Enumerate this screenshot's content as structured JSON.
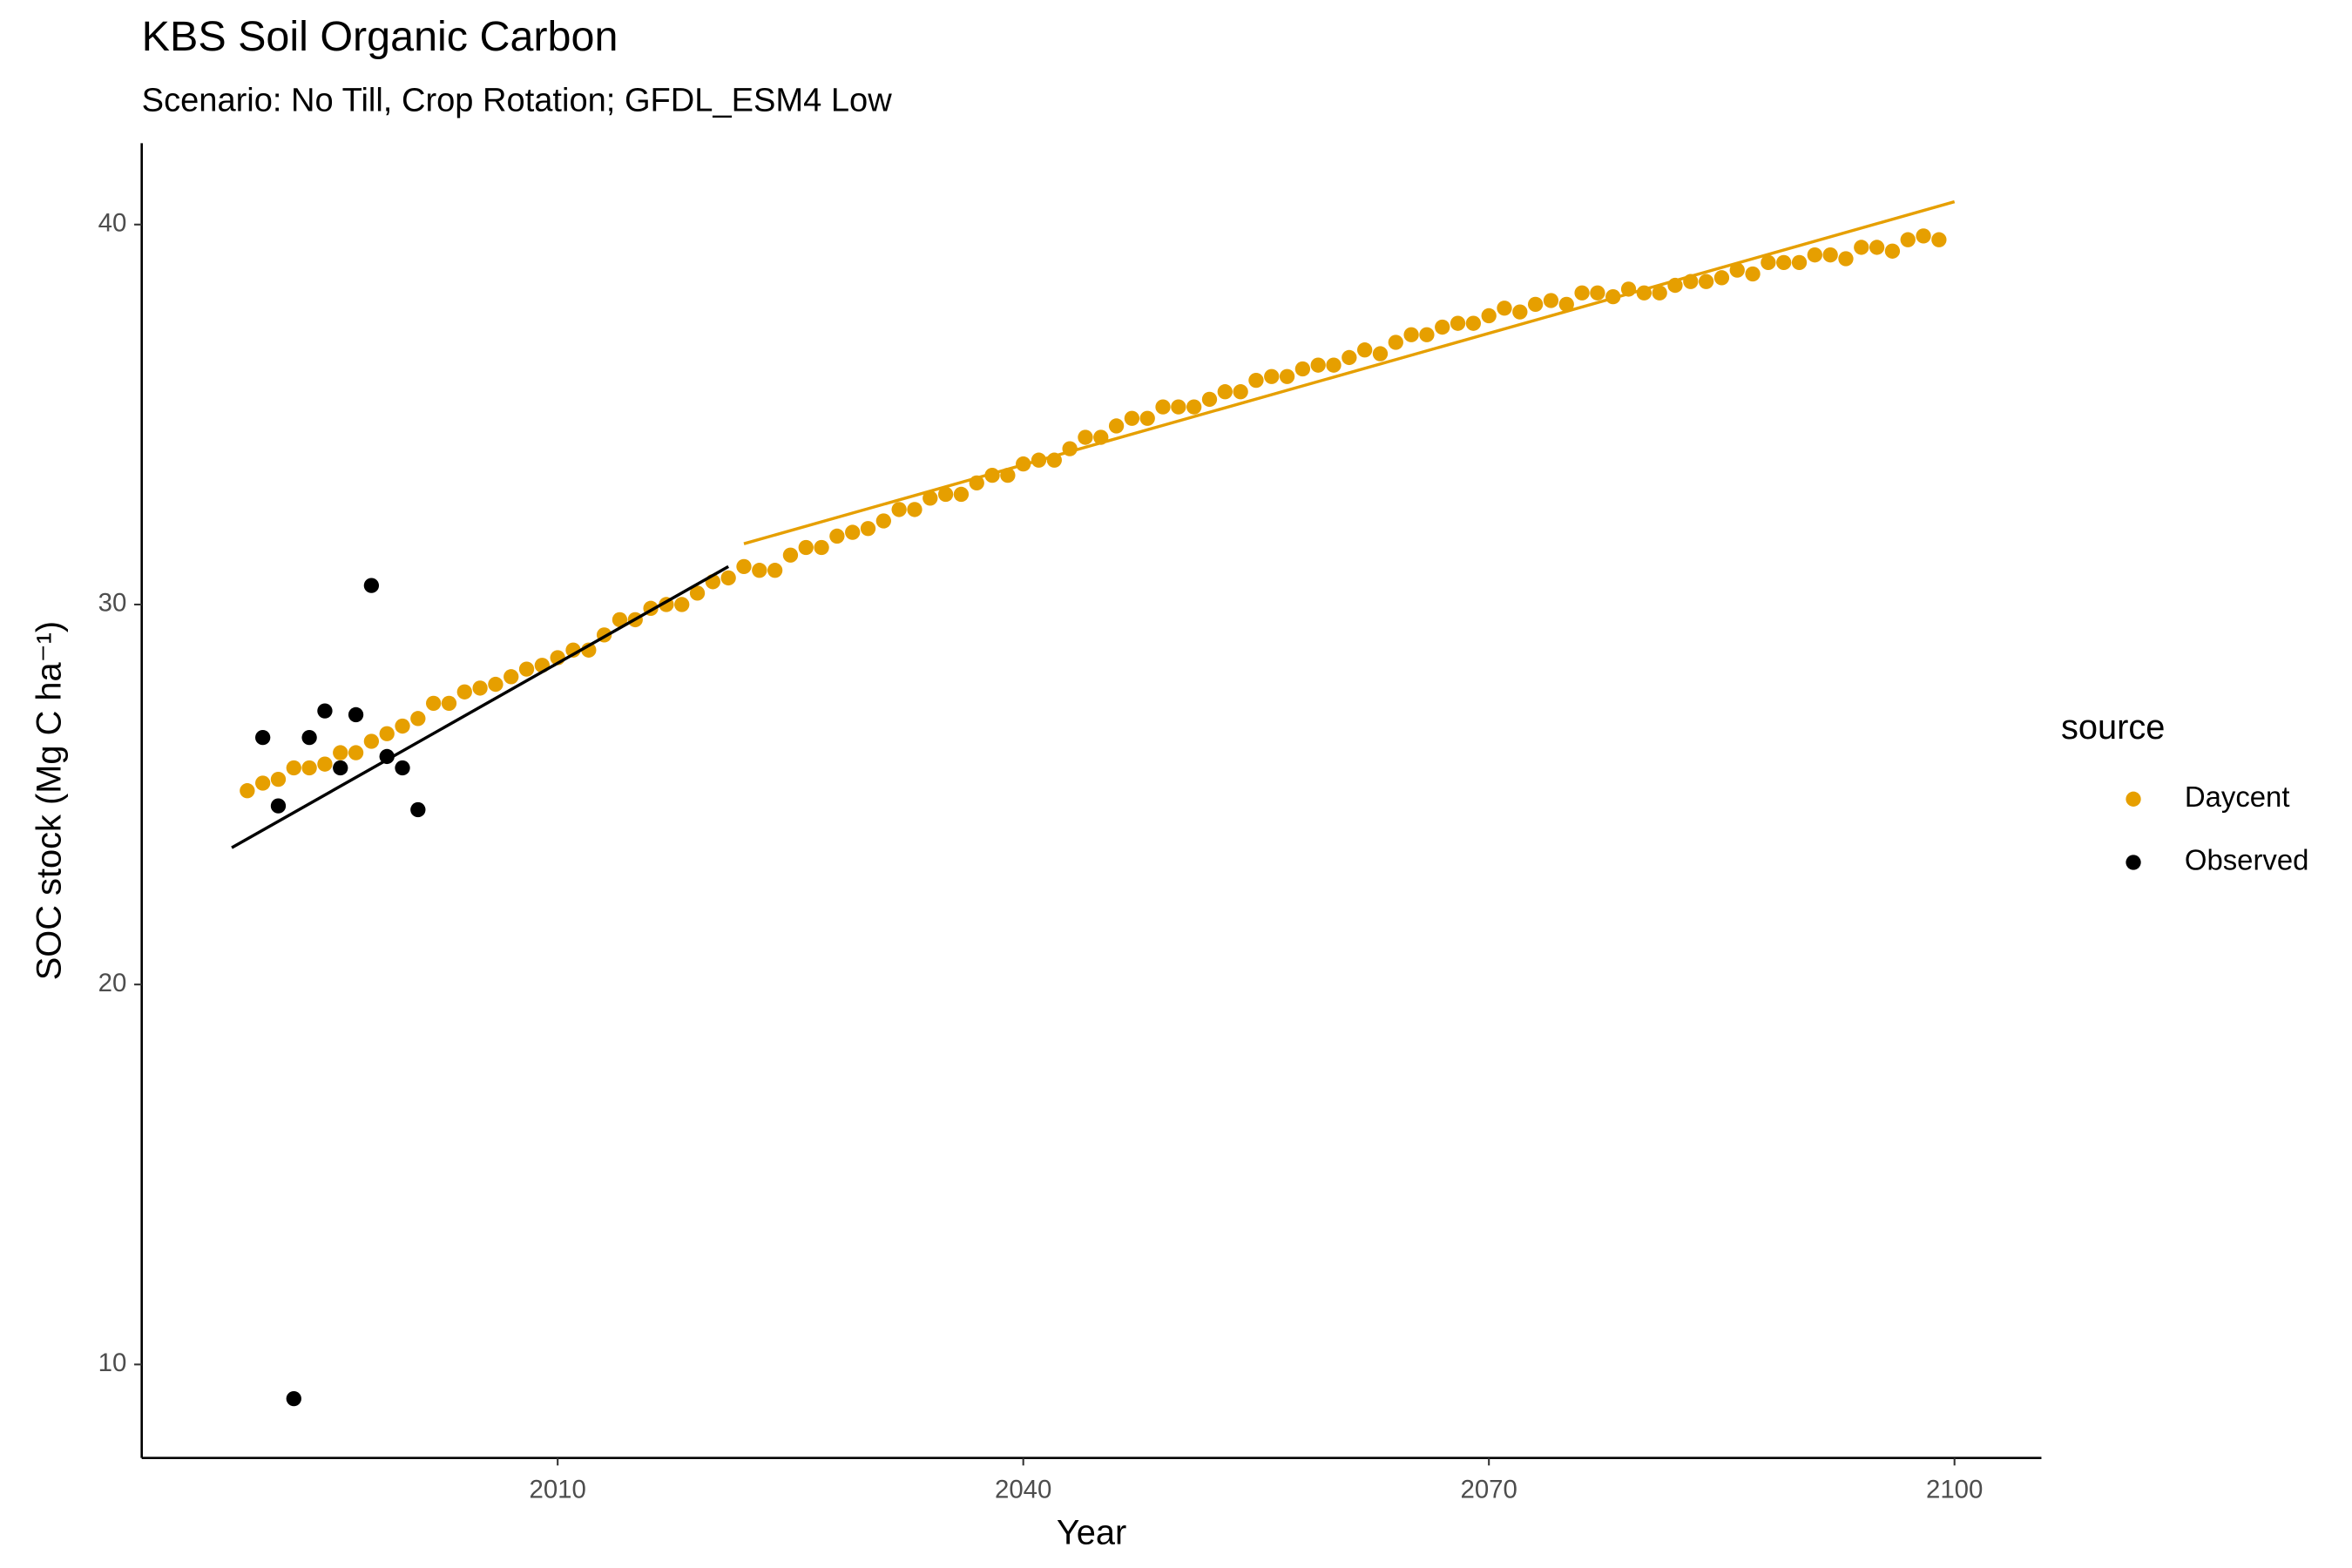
{
  "chart_data": {
    "type": "scatter",
    "title": "KBS Soil Organic Carbon",
    "subtitle": "Scenario: No Till, Crop Rotation; GFDL_ESM4 Low",
    "x_label": "Year",
    "y_label": "SOC stock (Mg C ha⁻¹)",
    "legend_title": "source",
    "legend_position": "right",
    "grid": false,
    "xlim": [
      1983.2,
      2105.6
    ],
    "ylim": [
      7.54,
      42.14
    ],
    "xticks": [
      2010,
      2040,
      2070,
      2100
    ],
    "yticks": [
      10,
      20,
      30,
      40
    ],
    "series": [
      {
        "name": "Daycent",
        "color": "#e69f00",
        "x": [
          1990,
          1991,
          1992,
          1993,
          1994,
          1995,
          1996,
          1997,
          1998,
          1999,
          2000,
          2001,
          2002,
          2003,
          2004,
          2005,
          2006,
          2007,
          2008,
          2009,
          2010,
          2011,
          2012,
          2013,
          2014,
          2015,
          2016,
          2017,
          2018,
          2019,
          2020,
          2021,
          2022,
          2023,
          2024,
          2025,
          2026,
          2027,
          2028,
          2029,
          2030,
          2031,
          2032,
          2033,
          2034,
          2035,
          2036,
          2037,
          2038,
          2039,
          2040,
          2041,
          2042,
          2043,
          2044,
          2045,
          2046,
          2047,
          2048,
          2049,
          2050,
          2051,
          2052,
          2053,
          2054,
          2055,
          2056,
          2057,
          2058,
          2059,
          2060,
          2061,
          2062,
          2063,
          2064,
          2065,
          2066,
          2067,
          2068,
          2069,
          2070,
          2071,
          2072,
          2073,
          2074,
          2075,
          2076,
          2077,
          2078,
          2079,
          2080,
          2081,
          2082,
          2083,
          2084,
          2085,
          2086,
          2087,
          2088,
          2089,
          2090,
          2091,
          2092,
          2093,
          2094,
          2095,
          2096,
          2097,
          2098,
          2099
        ],
        "values": [
          25.1,
          25.3,
          25.4,
          25.7,
          25.7,
          25.8,
          26.1,
          26.1,
          26.4,
          26.6,
          26.8,
          27.0,
          27.4,
          27.4,
          27.7,
          27.8,
          27.9,
          28.1,
          28.3,
          28.4,
          28.6,
          28.8,
          28.8,
          29.2,
          29.6,
          29.6,
          29.9,
          30.0,
          30.0,
          30.3,
          30.6,
          30.7,
          31.0,
          30.9,
          30.9,
          31.3,
          31.5,
          31.5,
          31.8,
          31.9,
          32.0,
          32.2,
          32.5,
          32.5,
          32.8,
          32.9,
          32.9,
          33.2,
          33.4,
          33.4,
          33.7,
          33.8,
          33.8,
          34.1,
          34.4,
          34.4,
          34.7,
          34.9,
          34.9,
          35.2,
          35.2,
          35.2,
          35.4,
          35.6,
          35.6,
          35.9,
          36.0,
          36.0,
          36.2,
          36.3,
          36.3,
          36.5,
          36.7,
          36.6,
          36.9,
          37.1,
          37.1,
          37.3,
          37.4,
          37.4,
          37.6,
          37.8,
          37.7,
          37.9,
          38.0,
          37.9,
          38.2,
          38.2,
          38.1,
          38.3,
          38.2,
          38.2,
          38.4,
          38.5,
          38.5,
          38.6,
          38.8,
          38.7,
          39.0,
          39.0,
          39.0,
          39.2,
          39.2,
          39.1,
          39.4,
          39.4,
          39.3,
          39.6,
          39.7,
          39.6
        ]
      },
      {
        "name": "Observed",
        "color": "#000000",
        "x": [
          1991,
          1992,
          1993,
          1994,
          1995,
          1996,
          1997,
          1998,
          1999,
          2000,
          2001
        ],
        "values": [
          26.5,
          24.7,
          9.1,
          26.5,
          27.2,
          25.7,
          27.1,
          30.5,
          26.0,
          25.7,
          24.6
        ]
      }
    ],
    "trend_lines": [
      {
        "color": "#000000",
        "x": [
          1989,
          2021
        ],
        "values": [
          23.6,
          31.0
        ]
      },
      {
        "color": "#e69f00",
        "x": [
          2022,
          2100
        ],
        "values": [
          31.6,
          40.6
        ]
      }
    ]
  }
}
